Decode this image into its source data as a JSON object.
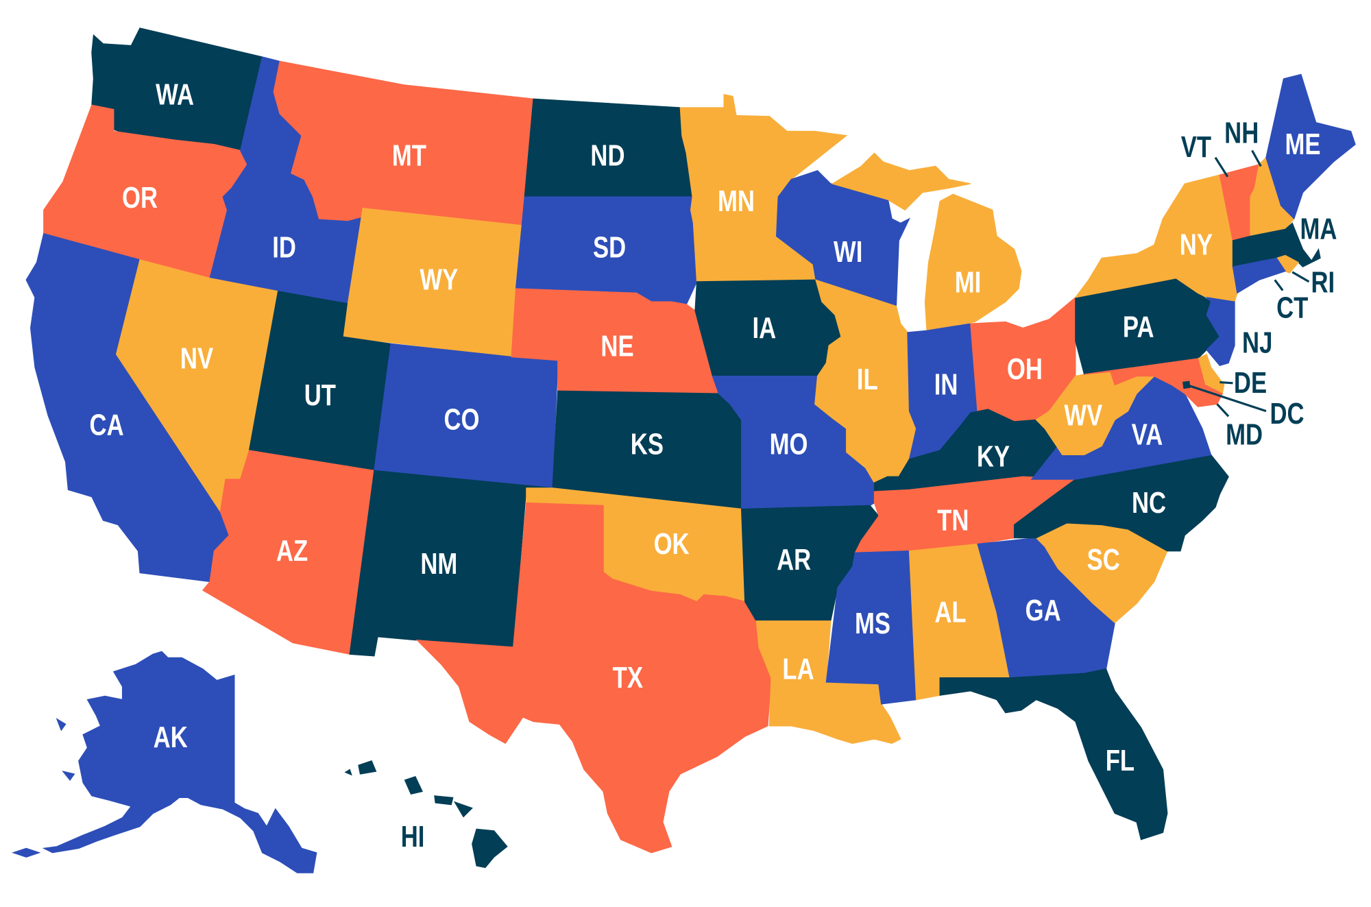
{
  "palette": {
    "teal": "#023e56",
    "blue": "#2d4eb8",
    "orange": "#fd6847",
    "yellow": "#f9ae3a",
    "label_light": "#ffffff",
    "label_dark": "#023e56"
  },
  "states": [
    {
      "code": "WA",
      "color": "teal"
    },
    {
      "code": "OR",
      "color": "orange"
    },
    {
      "code": "CA",
      "color": "blue"
    },
    {
      "code": "ID",
      "color": "blue"
    },
    {
      "code": "NV",
      "color": "yellow"
    },
    {
      "code": "MT",
      "color": "orange"
    },
    {
      "code": "WY",
      "color": "yellow"
    },
    {
      "code": "UT",
      "color": "teal"
    },
    {
      "code": "AZ",
      "color": "orange"
    },
    {
      "code": "CO",
      "color": "blue"
    },
    {
      "code": "NM",
      "color": "teal"
    },
    {
      "code": "ND",
      "color": "teal"
    },
    {
      "code": "SD",
      "color": "blue"
    },
    {
      "code": "NE",
      "color": "orange"
    },
    {
      "code": "KS",
      "color": "teal"
    },
    {
      "code": "OK",
      "color": "yellow"
    },
    {
      "code": "TX",
      "color": "orange"
    },
    {
      "code": "MN",
      "color": "yellow"
    },
    {
      "code": "IA",
      "color": "teal"
    },
    {
      "code": "MO",
      "color": "blue"
    },
    {
      "code": "AR",
      "color": "teal"
    },
    {
      "code": "LA",
      "color": "yellow"
    },
    {
      "code": "WI",
      "color": "blue"
    },
    {
      "code": "IL",
      "color": "yellow"
    },
    {
      "code": "MI",
      "color": "yellow"
    },
    {
      "code": "IN",
      "color": "blue"
    },
    {
      "code": "OH",
      "color": "orange"
    },
    {
      "code": "KY",
      "color": "teal"
    },
    {
      "code": "TN",
      "color": "orange"
    },
    {
      "code": "MS",
      "color": "blue"
    },
    {
      "code": "AL",
      "color": "yellow"
    },
    {
      "code": "GA",
      "color": "blue"
    },
    {
      "code": "FL",
      "color": "teal"
    },
    {
      "code": "SC",
      "color": "yellow"
    },
    {
      "code": "NC",
      "color": "teal"
    },
    {
      "code": "VA",
      "color": "blue"
    },
    {
      "code": "WV",
      "color": "yellow"
    },
    {
      "code": "PA",
      "color": "teal"
    },
    {
      "code": "NY",
      "color": "yellow"
    },
    {
      "code": "VT",
      "color": "orange"
    },
    {
      "code": "NH",
      "color": "yellow"
    },
    {
      "code": "ME",
      "color": "blue"
    },
    {
      "code": "MA",
      "color": "teal"
    },
    {
      "code": "RI",
      "color": "yellow"
    },
    {
      "code": "CT",
      "color": "blue"
    },
    {
      "code": "NJ",
      "color": "blue"
    },
    {
      "code": "DE",
      "color": "yellow"
    },
    {
      "code": "MD",
      "color": "orange"
    },
    {
      "code": "DC",
      "color": "teal"
    },
    {
      "code": "AK",
      "color": "blue"
    },
    {
      "code": "HI",
      "color": "teal"
    }
  ]
}
